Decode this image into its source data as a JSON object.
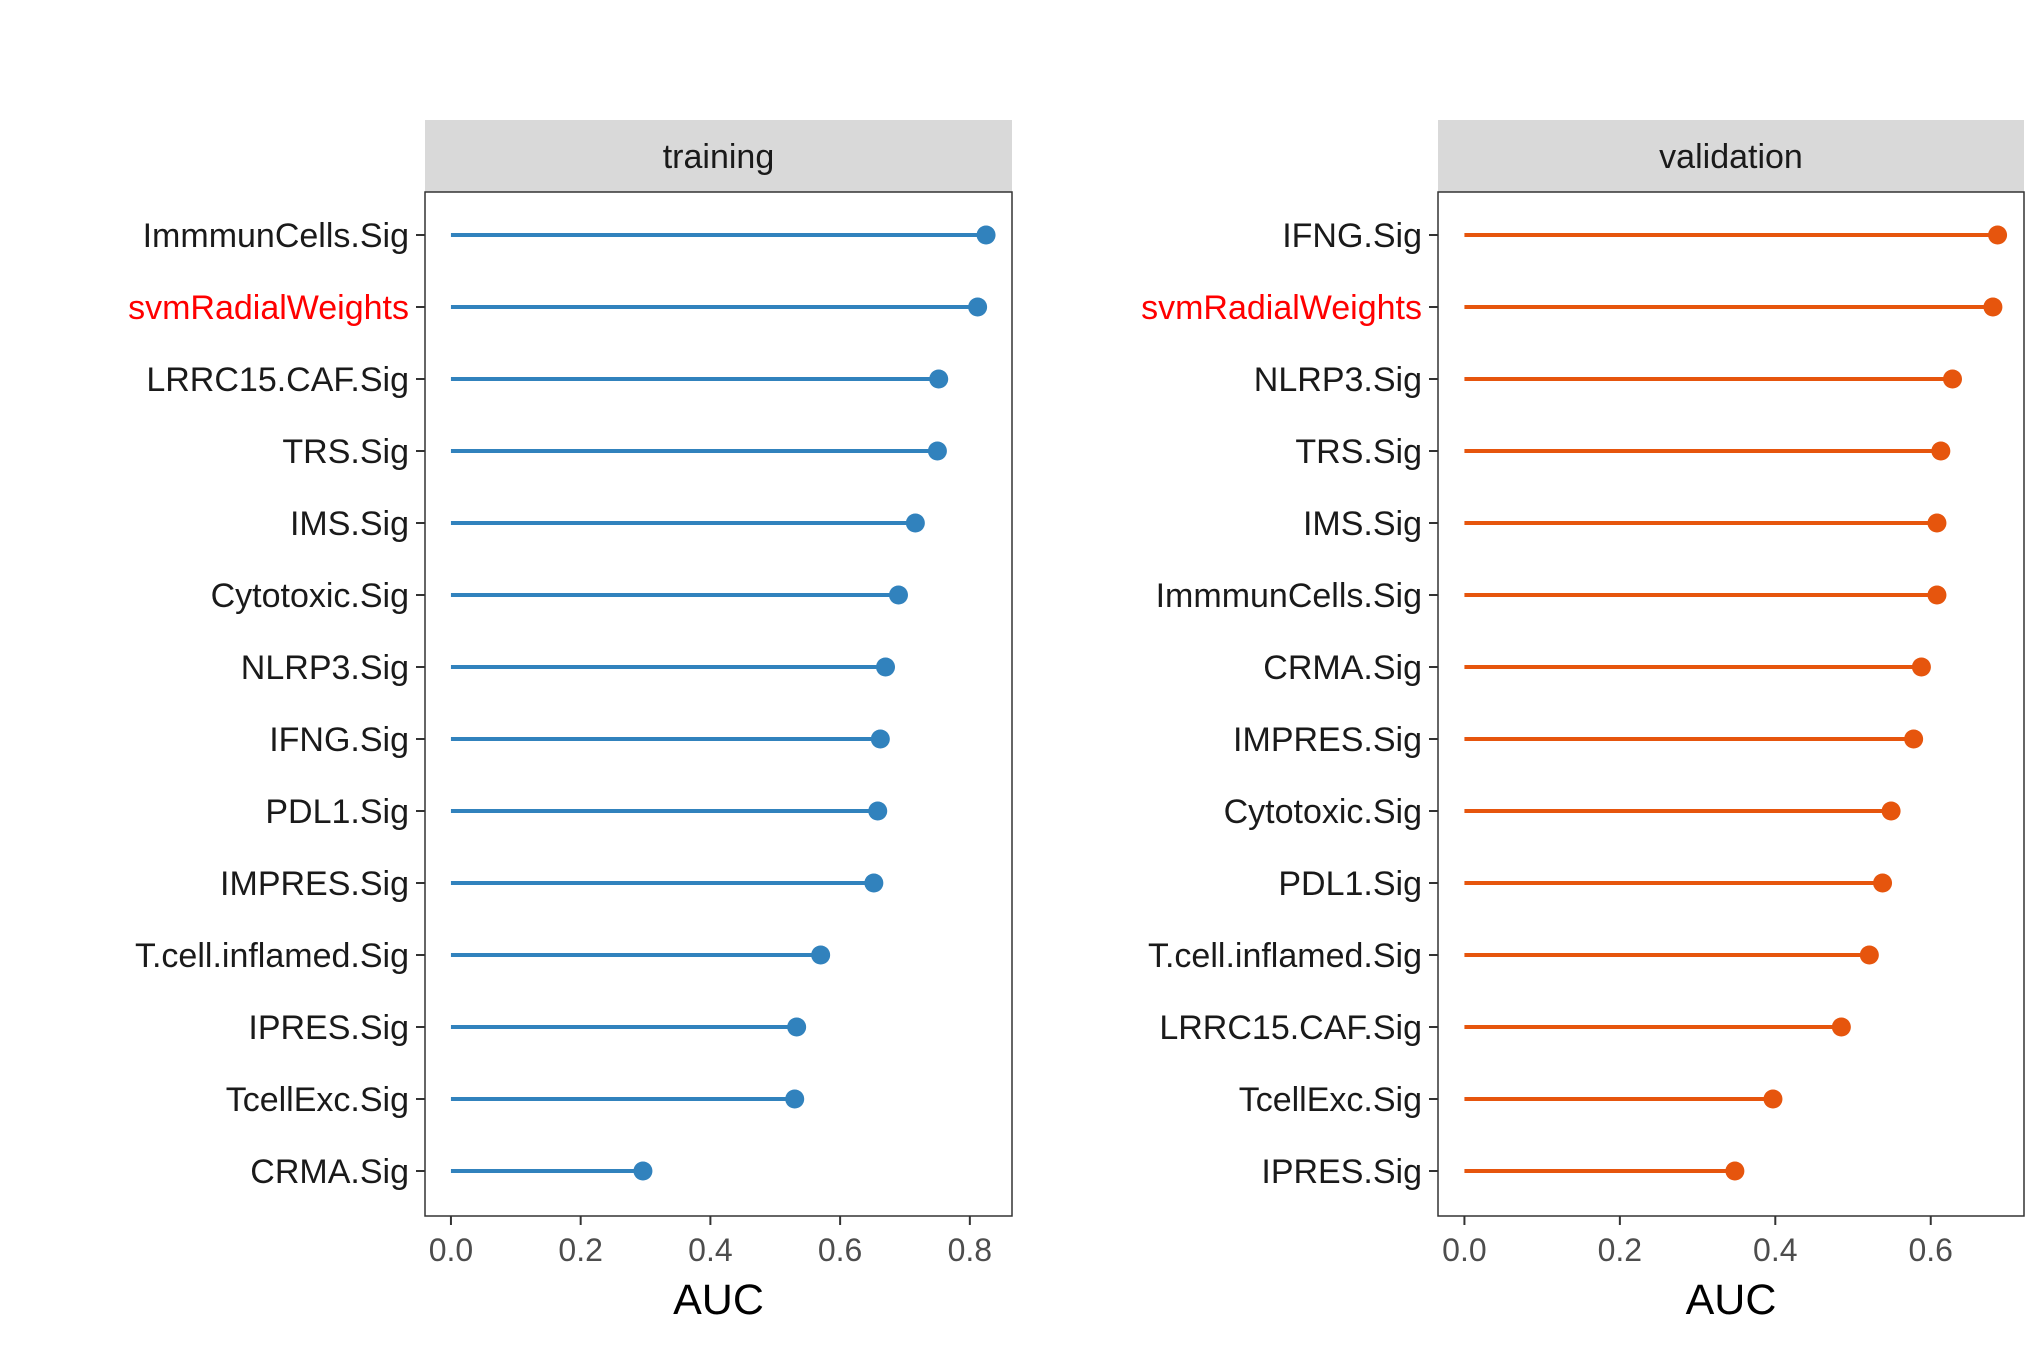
{
  "chart_data": [
    {
      "type": "lollipop",
      "panel": "training",
      "xlabel": "AUC",
      "xlim": [
        -0.04,
        0.865
      ],
      "xticks": [
        "0.0",
        "0.2",
        "0.4",
        "0.6",
        "0.8"
      ],
      "xtick_values": [
        0,
        0.2,
        0.4,
        0.6,
        0.8
      ],
      "color": "#3182bd",
      "highlight_color": "#ff0000",
      "highlight": "svmRadialWeights",
      "categories": [
        "ImmmunCells.Sig",
        "svmRadialWeights",
        "LRRC15.CAF.Sig",
        "TRS.Sig",
        "IMS.Sig",
        "Cytotoxic.Sig",
        "NLRP3.Sig",
        "IFNG.Sig",
        "PDL1.Sig",
        "IMPRES.Sig",
        "T.cell.inflamed.Sig",
        "IPRES.Sig",
        "TcellExc.Sig",
        "CRMA.Sig"
      ],
      "values": [
        0.825,
        0.812,
        0.752,
        0.75,
        0.716,
        0.69,
        0.67,
        0.662,
        0.658,
        0.652,
        0.57,
        0.533,
        0.53,
        0.296
      ]
    },
    {
      "type": "lollipop",
      "panel": "validation",
      "xlabel": "AUC",
      "xlim": [
        -0.034,
        0.72
      ],
      "xticks": [
        "0.0",
        "0.2",
        "0.4",
        "0.6"
      ],
      "xtick_values": [
        0,
        0.2,
        0.4,
        0.6
      ],
      "color": "#e6550d",
      "highlight_color": "#ff0000",
      "highlight": "svmRadialWeights",
      "categories": [
        "IFNG.Sig",
        "svmRadialWeights",
        "NLRP3.Sig",
        "TRS.Sig",
        "IMS.Sig",
        "ImmmunCells.Sig",
        "CRMA.Sig",
        "IMPRES.Sig",
        "Cytotoxic.Sig",
        "PDL1.Sig",
        "T.cell.inflamed.Sig",
        "LRRC15.CAF.Sig",
        "TcellExc.Sig",
        "IPRES.Sig"
      ],
      "values": [
        0.686,
        0.68,
        0.628,
        0.613,
        0.608,
        0.608,
        0.588,
        0.578,
        0.549,
        0.538,
        0.521,
        0.485,
        0.397,
        0.348
      ]
    }
  ]
}
